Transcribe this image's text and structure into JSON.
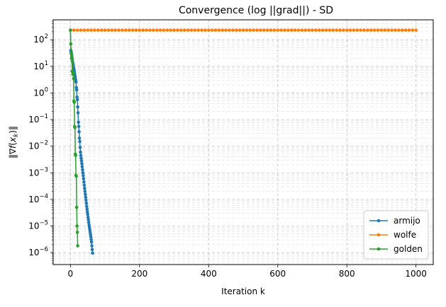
{
  "chart_data": {
    "type": "line",
    "title": "Convergence (log ||grad||) - SD",
    "xlabel": "Iteration k",
    "ylabel": "‖∇f(x_k)‖",
    "yscale": "log",
    "xlim": [
      -50,
      1050
    ],
    "ylim_exponent": [
      -6.45,
      2.75
    ],
    "x_ticks": [
      0,
      200,
      400,
      600,
      800,
      1000
    ],
    "x_tick_labels": [
      "0",
      "200",
      "400",
      "600",
      "800",
      "1000"
    ],
    "y_ticks": [
      -6,
      -5,
      -4,
      -3,
      -2,
      -1,
      0,
      1,
      2
    ],
    "y_tick_labels": [
      "−6",
      "−5",
      "−4",
      "−3",
      "−2",
      "−1",
      "0",
      "1",
      "2"
    ],
    "grid": true,
    "legend_position": "lower-right",
    "series": [
      {
        "name": "armijo",
        "color": "#1f77b4",
        "x": [
          0,
          1,
          2,
          3,
          4,
          5,
          6,
          7,
          8,
          9,
          10,
          11,
          12,
          13,
          14,
          15,
          16,
          17,
          18,
          19,
          20,
          21,
          22,
          23,
          24,
          25,
          26,
          27,
          28,
          29,
          30,
          31,
          32,
          33,
          34,
          35,
          36,
          37,
          38,
          39,
          40,
          41,
          42,
          43,
          44,
          45,
          46,
          47,
          48,
          49,
          50,
          51,
          52,
          53,
          54,
          55,
          56,
          57,
          58,
          59,
          60,
          61,
          62,
          63,
          64
        ],
        "y": [
          230,
          40,
          35,
          30,
          24,
          20,
          16,
          13,
          11,
          9,
          8,
          6.8,
          5.5,
          4.6,
          3.8,
          3.1,
          2.6,
          1.6,
          1.3,
          0.7,
          0.56,
          0.3,
          0.18,
          0.08,
          0.055,
          0.035,
          0.02,
          0.015,
          0.009,
          0.006,
          0.0045,
          0.0035,
          0.0028,
          0.0022,
          0.0017,
          0.0013,
          0.001,
          0.00078,
          0.0006,
          0.00045,
          0.00034,
          0.00026,
          0.0002,
          0.000155,
          0.00012,
          9.4e-05,
          7.2e-05,
          5.5e-05,
          4.3e-05,
          3.4e-05,
          2.7e-05,
          2.1e-05,
          1.7e-05,
          1.35e-05,
          1.07e-05,
          8.8e-06,
          7.2e-06,
          5.9e-06,
          4.8e-06,
          3.9e-06,
          3.1e-06,
          2.5e-06,
          1.8e-06,
          1.3e-06,
          9.5e-07
        ]
      },
      {
        "name": "wolfe",
        "color": "#ff7f0e",
        "x_start": 0,
        "x_end": 1000,
        "x_step": 10,
        "y_constant": 230
      },
      {
        "name": "golden",
        "color": "#2ca02c",
        "x": [
          0,
          1,
          2,
          3,
          4,
          5,
          6,
          7,
          8,
          9,
          10,
          11,
          12,
          13,
          14,
          15,
          16,
          17,
          18,
          19,
          20,
          21
        ],
        "y": [
          230,
          70,
          30,
          20,
          25,
          6.5,
          15,
          5,
          5.5,
          3.5,
          0.5,
          0.45,
          0.055,
          0.05,
          0.005,
          0.0045,
          0.0008,
          0.00075,
          5e-05,
          1e-05,
          5.8e-06,
          1.8e-06
        ]
      }
    ]
  }
}
